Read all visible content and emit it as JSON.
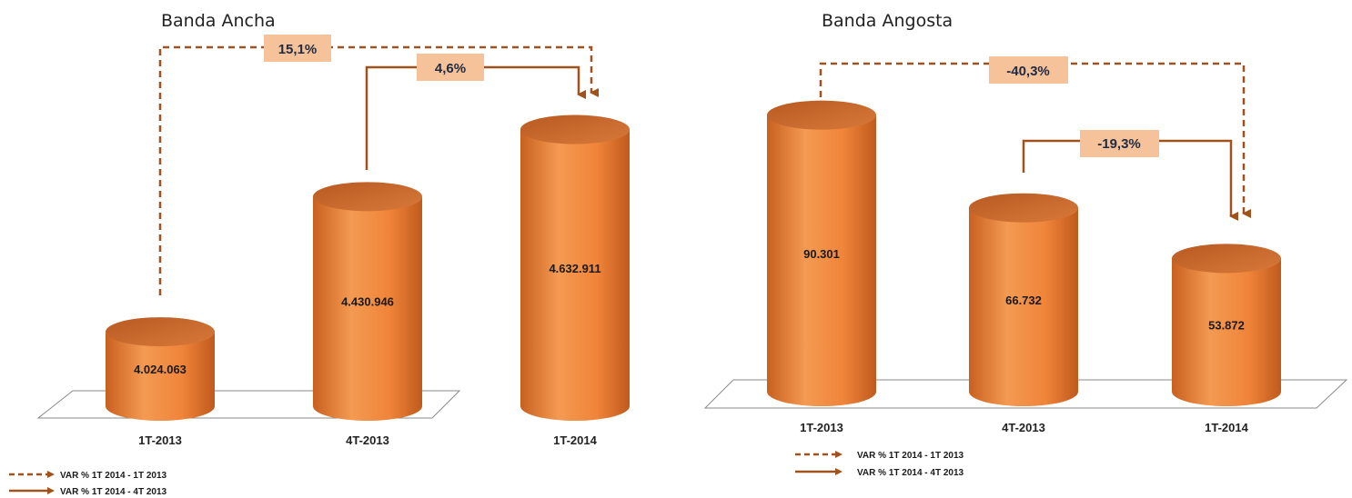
{
  "colors": {
    "cylinder_body": "#f08a3a",
    "cylinder_top": "#c9652a",
    "arrow": "#a0521c",
    "label_box": "#f5c29a",
    "label_text": "#1f2a44"
  },
  "chart_data": [
    {
      "type": "bar",
      "title": "Banda Ancha",
      "categories": [
        "1T-2013",
        "4T-2013",
        "1T-2014"
      ],
      "values": [
        4024063,
        4430946,
        4632911
      ],
      "value_labels": [
        "4.024.063",
        "4.430.946",
        "4.632.911"
      ],
      "ylim": [
        3800000,
        4700000
      ],
      "variations": {
        "dashed": "15,1%",
        "solid": "4,6%"
      },
      "legend_position": "bottom-left"
    },
    {
      "type": "bar",
      "title": "Banda Angosta",
      "categories": [
        "1T-2013",
        "4T-2013",
        "1T-2014"
      ],
      "values": [
        90301,
        66732,
        53872
      ],
      "value_labels": [
        "90.301",
        "66.732",
        "53.872"
      ],
      "ylim": [
        20000,
        93000
      ],
      "variations": {
        "dashed": "-40,3%",
        "solid": "-19,3%"
      },
      "legend_position": "bottom-center"
    }
  ],
  "legend": {
    "dashed_label": "VAR % 1T 2014 - 1T 2013",
    "solid_label": "VAR % 1T 2014 - 4T 2013"
  }
}
